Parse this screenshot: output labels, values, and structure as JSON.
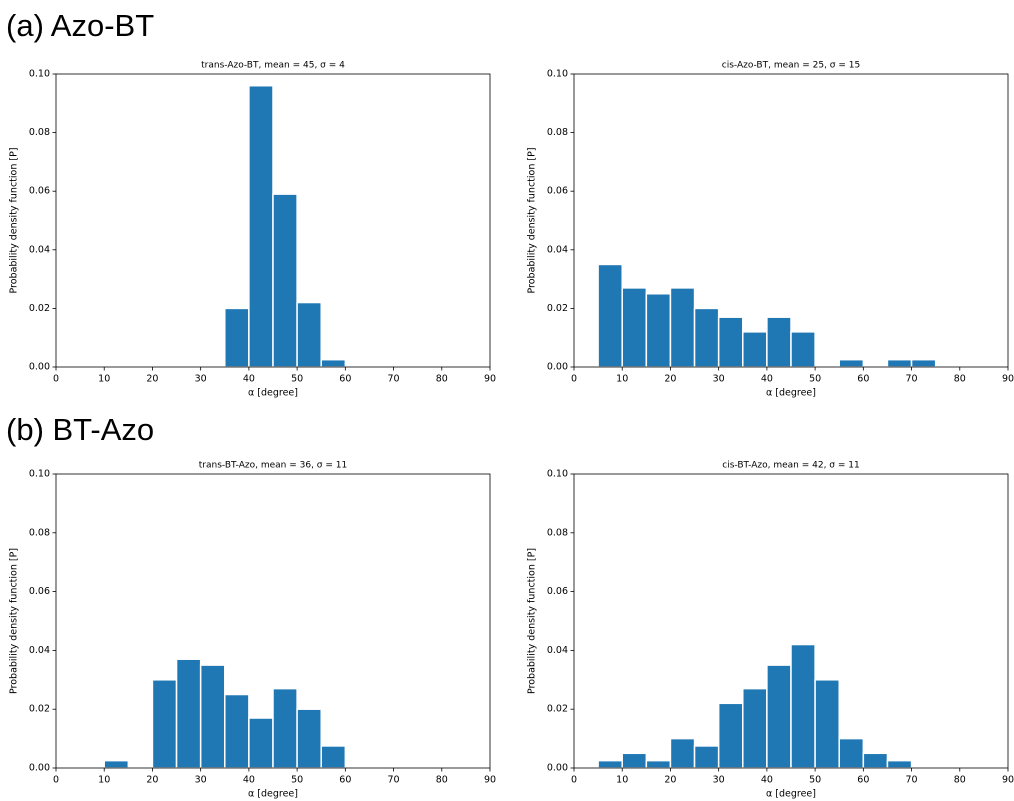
{
  "sections": [
    {
      "heading": "(a) Azo-BT"
    },
    {
      "heading": "(b) BT-Azo"
    }
  ],
  "chart_data": [
    {
      "type": "histogram",
      "title": "trans-Azo-BT, mean = 45, σ = 4",
      "x_label": "α [degree]",
      "y_label": "Probability density function [P]",
      "color": "#1f77b4",
      "bins": [
        35,
        40,
        45,
        50,
        55,
        60
      ],
      "counts": [
        0.02,
        0.096,
        0.059,
        0.022,
        0.0025
      ],
      "xlim": [
        0,
        90
      ],
      "xticks": [
        0,
        10,
        20,
        30,
        40,
        50,
        60,
        70,
        80,
        90
      ],
      "ylim": [
        0,
        0.1
      ],
      "yticks": [
        {
          "value": 0,
          "label": "0.00"
        },
        {
          "value": 0.02,
          "label": "0.02"
        },
        {
          "value": 0.04,
          "label": "0.04"
        },
        {
          "value": 0.06,
          "label": "0.06"
        },
        {
          "value": 0.08,
          "label": "0.08"
        },
        {
          "value": 0.1,
          "label": "0.10"
        }
      ]
    },
    {
      "type": "histogram",
      "title": "cis-Azo-BT, mean = 25, σ = 15",
      "x_label": "α [degree]",
      "y_label": "Probability density function [P]",
      "color": "#1f77b4",
      "bins": [
        5,
        10,
        15,
        20,
        25,
        30,
        35,
        40,
        45,
        50,
        55,
        60,
        65,
        70,
        75
      ],
      "counts": [
        0.035,
        0.027,
        0.025,
        0.027,
        0.02,
        0.017,
        0.012,
        0.017,
        0.012,
        0,
        0.0025,
        0,
        0.0025,
        0.0025
      ],
      "xlim": [
        0,
        90
      ],
      "xticks": [
        0,
        10,
        20,
        30,
        40,
        50,
        60,
        70,
        80,
        90
      ],
      "ylim": [
        0,
        0.1
      ],
      "yticks": [
        {
          "value": 0,
          "label": "0.00"
        },
        {
          "value": 0.02,
          "label": "0.02"
        },
        {
          "value": 0.04,
          "label": "0.04"
        },
        {
          "value": 0.06,
          "label": "0.06"
        },
        {
          "value": 0.08,
          "label": "0.08"
        },
        {
          "value": 0.1,
          "label": "0.10"
        }
      ]
    },
    {
      "type": "histogram",
      "title": "trans-BT-Azo, mean = 36, σ = 11",
      "x_label": "α [degree]",
      "y_label": "Probability density function [P]",
      "color": "#1f77b4",
      "bins": [
        10,
        15,
        20,
        25,
        30,
        35,
        40,
        45,
        50,
        55,
        60
      ],
      "counts": [
        0.0025,
        0,
        0.03,
        0.037,
        0.035,
        0.025,
        0.017,
        0.027,
        0.02,
        0.0075
      ],
      "xlim": [
        0,
        90
      ],
      "xticks": [
        0,
        10,
        20,
        30,
        40,
        50,
        60,
        70,
        80,
        90
      ],
      "ylim": [
        0,
        0.1
      ],
      "yticks": [
        {
          "value": 0,
          "label": "0.00"
        },
        {
          "value": 0.02,
          "label": "0.02"
        },
        {
          "value": 0.04,
          "label": "0.04"
        },
        {
          "value": 0.06,
          "label": "0.06"
        },
        {
          "value": 0.08,
          "label": "0.08"
        },
        {
          "value": 0.1,
          "label": "0.10"
        }
      ]
    },
    {
      "type": "histogram",
      "title": "cis-BT-Azo, mean = 42, σ = 11",
      "x_label": "α [degree]",
      "y_label": "Probability density function [P]",
      "color": "#1f77b4",
      "bins": [
        5,
        10,
        15,
        20,
        25,
        30,
        35,
        40,
        45,
        50,
        55,
        60,
        65,
        70
      ],
      "counts": [
        0.0025,
        0.005,
        0.0025,
        0.01,
        0.0075,
        0.022,
        0.027,
        0.035,
        0.042,
        0.03,
        0.01,
        0.005,
        0.0025
      ],
      "xlim": [
        0,
        90
      ],
      "xticks": [
        0,
        10,
        20,
        30,
        40,
        50,
        60,
        70,
        80,
        90
      ],
      "ylim": [
        0,
        0.1
      ],
      "yticks": [
        {
          "value": 0,
          "label": "0.00"
        },
        {
          "value": 0.02,
          "label": "0.02"
        },
        {
          "value": 0.04,
          "label": "0.04"
        },
        {
          "value": 0.06,
          "label": "0.06"
        },
        {
          "value": 0.08,
          "label": "0.08"
        },
        {
          "value": 0.1,
          "label": "0.10"
        }
      ]
    }
  ]
}
